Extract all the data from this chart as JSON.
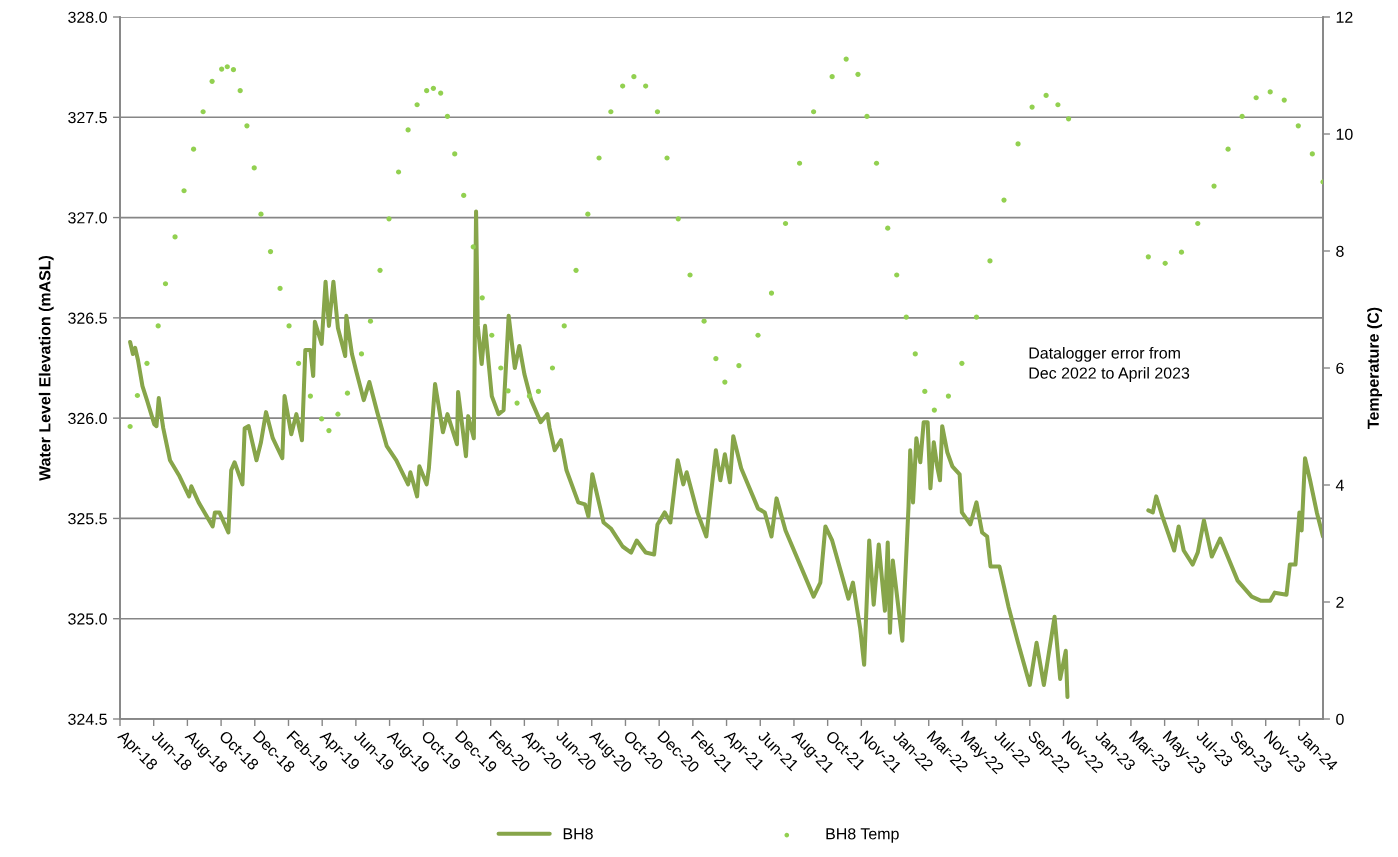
{
  "chart_data": {
    "type": "line",
    "ylabel": "Water Level Elevation (mASL)",
    "y2label": "Temperature (C)",
    "annotations": [
      "Datalogger error from\nDec 2022 to April 2023"
    ],
    "xlim": [
      "2018-04-20",
      "2024-03-01"
    ],
    "xticks": [
      {
        "value": "2018-04-20",
        "label": "Apr-18"
      },
      {
        "value": "2018-06-19",
        "label": "Jun-18"
      },
      {
        "value": "2018-08-18",
        "label": "Aug-18"
      },
      {
        "value": "2018-10-17",
        "label": "Oct-18"
      },
      {
        "value": "2018-12-16",
        "label": "Dec-18"
      },
      {
        "value": "2019-02-14",
        "label": "Feb-19"
      },
      {
        "value": "2019-04-15",
        "label": "Apr-19"
      },
      {
        "value": "2019-06-14",
        "label": "Jun-19"
      },
      {
        "value": "2019-08-13",
        "label": "Aug-19"
      },
      {
        "value": "2019-10-12",
        "label": "Oct-19"
      },
      {
        "value": "2019-12-11",
        "label": "Dec-19"
      },
      {
        "value": "2020-02-09",
        "label": "Feb-20"
      },
      {
        "value": "2020-04-09",
        "label": "Apr-20"
      },
      {
        "value": "2020-06-08",
        "label": "Jun-20"
      },
      {
        "value": "2020-08-07",
        "label": "Aug-20"
      },
      {
        "value": "2020-10-06",
        "label": "Oct-20"
      },
      {
        "value": "2020-12-05",
        "label": "Dec-20"
      },
      {
        "value": "2021-02-03",
        "label": "Feb-21"
      },
      {
        "value": "2021-04-04",
        "label": "Apr-21"
      },
      {
        "value": "2021-06-03",
        "label": "Jun-21"
      },
      {
        "value": "2021-08-02",
        "label": "Aug-21"
      },
      {
        "value": "2021-10-01",
        "label": "Oct-21"
      },
      {
        "value": "2021-11-30",
        "label": "Nov-21"
      },
      {
        "value": "2022-01-29",
        "label": "Jan-22"
      },
      {
        "value": "2022-03-30",
        "label": "Mar-22"
      },
      {
        "value": "2022-05-29",
        "label": "May-22"
      },
      {
        "value": "2022-07-28",
        "label": "Jul-22"
      },
      {
        "value": "2022-09-26",
        "label": "Sep-22"
      },
      {
        "value": "2022-11-25",
        "label": "Nov-22"
      },
      {
        "value": "2023-01-24",
        "label": "Jan-23"
      },
      {
        "value": "2023-03-25",
        "label": "Mar-23"
      },
      {
        "value": "2023-05-24",
        "label": "May-23"
      },
      {
        "value": "2023-07-23",
        "label": "Jul-23"
      },
      {
        "value": "2023-09-21",
        "label": "Sep-23"
      },
      {
        "value": "2023-11-20",
        "label": "Nov-23"
      },
      {
        "value": "2024-01-19",
        "label": "Jan-24"
      }
    ],
    "ylim": [
      324.5,
      328.0
    ],
    "yticks": [
      {
        "value": 324.5,
        "label": "324.5"
      },
      {
        "value": 325.0,
        "label": "325.0"
      },
      {
        "value": 325.5,
        "label": "325.5"
      },
      {
        "value": 326.0,
        "label": "326.0"
      },
      {
        "value": 326.5,
        "label": "326.5"
      },
      {
        "value": 327.0,
        "label": "327.0"
      },
      {
        "value": 327.5,
        "label": "327.5"
      },
      {
        "value": 328.0,
        "label": "328.0"
      }
    ],
    "y2lim": [
      0,
      12
    ],
    "y2ticks": [
      0,
      2,
      4,
      6,
      8,
      10,
      12
    ],
    "grid": "y",
    "legend": "bottom",
    "series": [
      {
        "name": "BH8",
        "color": "#87a54a",
        "line_style": "solid",
        "x": [
          "2018-05-08",
          "2018-05-13",
          "2018-05-17",
          "2018-05-22",
          "2018-05-30",
          "2018-06-07",
          "2018-06-20",
          "2018-06-24",
          "2018-06-28",
          "2018-07-06",
          "2018-07-18",
          "2018-08-04",
          "2018-08-21",
          "2018-08-25",
          "2018-09-07",
          "2018-10-02",
          "2018-10-06",
          "2018-10-14",
          "2018-10-30",
          "2018-11-04",
          "2018-11-10",
          "2018-11-24",
          "2018-11-28",
          "2018-12-05",
          "2018-12-19",
          "2018-12-27",
          "2019-01-05",
          "2019-01-17",
          "2019-02-03",
          "2019-02-07",
          "2019-02-19",
          "2019-02-28",
          "2019-03-10",
          "2019-03-16",
          "2019-03-25",
          "2019-03-30",
          "2019-04-02",
          "2019-04-14",
          "2019-04-21",
          "2019-04-27",
          "2019-05-05",
          "2019-05-13",
          "2019-05-26",
          "2019-05-28",
          "2019-06-07",
          "2019-06-15",
          "2019-06-28",
          "2019-07-08",
          "2019-07-22",
          "2019-08-08",
          "2019-08-25",
          "2019-09-15",
          "2019-09-19",
          "2019-10-01",
          "2019-10-05",
          "2019-10-18",
          "2019-10-22",
          "2019-11-02",
          "2019-11-16",
          "2019-11-24",
          "2019-12-11",
          "2019-12-13",
          "2019-12-27",
          "2019-12-31",
          "2020-01-10",
          "2020-01-14",
          "2020-01-17",
          "2020-01-24",
          "2020-01-30",
          "2020-02-11",
          "2020-02-23",
          "2020-03-03",
          "2020-03-12",
          "2020-03-23",
          "2020-03-31",
          "2020-04-09",
          "2020-04-21",
          "2020-05-08",
          "2020-05-20",
          "2020-05-24",
          "2020-06-02",
          "2020-06-13",
          "2020-06-23",
          "2020-07-14",
          "2020-07-26",
          "2020-08-01",
          "2020-08-08",
          "2020-08-28",
          "2020-09-10",
          "2020-10-01",
          "2020-10-16",
          "2020-10-26",
          "2020-11-11",
          "2020-11-26",
          "2020-12-02",
          "2020-12-15",
          "2020-12-25",
          "2021-01-07",
          "2021-01-17",
          "2021-01-23",
          "2021-02-11",
          "2021-02-27",
          "2021-03-06",
          "2021-03-16",
          "2021-03-24",
          "2021-04-01",
          "2021-04-10",
          "2021-04-16",
          "2021-04-30",
          "2021-05-30",
          "2021-06-11",
          "2021-06-23",
          "2021-07-02",
          "2021-07-18",
          "2021-09-06",
          "2021-09-18",
          "2021-09-27",
          "2021-10-09",
          "2021-10-22",
          "2021-11-07",
          "2021-11-15",
          "2021-11-28",
          "2021-12-05",
          "2021-12-14",
          "2021-12-22",
          "2021-12-31",
          "2022-01-11",
          "2022-01-16",
          "2022-01-20",
          "2022-01-25",
          "2022-02-11",
          "2022-02-22",
          "2022-02-25",
          "2022-03-02",
          "2022-03-08",
          "2022-03-15",
          "2022-03-21",
          "2022-03-28",
          "2022-04-02",
          "2022-04-08",
          "2022-04-14",
          "2022-04-19",
          "2022-04-23",
          "2022-05-02",
          "2022-05-11",
          "2022-05-24",
          "2022-05-28",
          "2022-06-12",
          "2022-06-23",
          "2022-07-03",
          "2022-07-12",
          "2022-07-18",
          "2022-08-03",
          "2022-08-19",
          "2022-09-05",
          "2022-09-26",
          "2022-10-08",
          "2022-10-21",
          "2022-11-09",
          "2022-11-19",
          "2022-11-29",
          "2022-12-02",
          "2023-01-24",
          "2023-04-25",
          "2023-05-03",
          "2023-05-09",
          "2023-05-20",
          "2023-06-10",
          "2023-06-18",
          "2023-06-27",
          "2023-07-13",
          "2023-07-22",
          "2023-08-02",
          "2023-08-16",
          "2023-08-31",
          "2023-10-01",
          "2023-10-26",
          "2023-11-11",
          "2023-11-28",
          "2023-12-06",
          "2023-12-27",
          "2024-01-02",
          "2024-01-12",
          "2024-01-19",
          "2024-01-23",
          "2024-01-29",
          "2024-02-07",
          "2024-02-19",
          "2024-03-01"
        ],
        "values": [
          326.38,
          326.32,
          326.35,
          326.29,
          326.16,
          326.09,
          325.97,
          325.96,
          326.1,
          325.95,
          325.79,
          325.71,
          325.61,
          325.66,
          325.58,
          325.46,
          325.53,
          325.53,
          325.43,
          325.74,
          325.78,
          325.67,
          325.95,
          325.96,
          325.79,
          325.88,
          326.03,
          325.9,
          325.8,
          326.11,
          325.92,
          326.02,
          325.89,
          326.34,
          326.34,
          326.21,
          326.48,
          326.37,
          326.68,
          326.46,
          326.68,
          326.45,
          326.31,
          326.51,
          326.32,
          326.23,
          326.09,
          326.18,
          326.03,
          325.86,
          325.79,
          325.67,
          325.73,
          325.61,
          325.76,
          325.67,
          325.75,
          326.17,
          325.93,
          326.02,
          325.87,
          326.13,
          325.81,
          326.01,
          325.9,
          327.03,
          326.46,
          326.27,
          326.46,
          326.11,
          326.02,
          326.04,
          326.51,
          326.25,
          326.36,
          326.22,
          326.09,
          325.98,
          326.02,
          325.95,
          325.84,
          325.89,
          325.74,
          325.58,
          325.57,
          325.51,
          325.72,
          325.48,
          325.45,
          325.36,
          325.33,
          325.39,
          325.33,
          325.32,
          325.47,
          325.53,
          325.48,
          325.79,
          325.67,
          325.73,
          325.53,
          325.41,
          325.59,
          325.84,
          325.69,
          325.82,
          325.68,
          325.91,
          325.75,
          325.55,
          325.53,
          325.41,
          325.6,
          325.44,
          325.11,
          325.18,
          325.46,
          325.39,
          325.26,
          325.1,
          325.18,
          324.95,
          324.77,
          325.39,
          325.07,
          325.37,
          325.04,
          325.38,
          324.93,
          325.29,
          324.89,
          325.56,
          325.84,
          325.58,
          325.9,
          325.78,
          325.98,
          325.98,
          325.65,
          325.88,
          325.76,
          325.69,
          325.96,
          325.83,
          325.76,
          325.72,
          325.53,
          325.47,
          325.58,
          325.43,
          325.41,
          325.26,
          325.26,
          325.06,
          324.88,
          324.67,
          324.88,
          324.67,
          325.01,
          324.7,
          324.84,
          324.61,
          null,
          325.54,
          325.53,
          325.61,
          325.51,
          325.34,
          325.46,
          325.34,
          325.27,
          325.33,
          325.49,
          325.31,
          325.4,
          325.19,
          325.11,
          325.09,
          325.09,
          325.13,
          325.12,
          325.27,
          325.27,
          325.53,
          325.44,
          325.8,
          325.69,
          325.53,
          325.41
        ]
      },
      {
        "name": "BH8 Temp",
        "type": "scatter",
        "axis": "y2",
        "color": "#92d050",
        "marker": "circle",
        "x": [
          "2018-05-08",
          "2018-05-21",
          "2018-06-07",
          "2018-06-27",
          "2018-07-10",
          "2018-07-27",
          "2018-08-12",
          "2018-08-29",
          "2018-09-15",
          "2018-10-01",
          "2018-10-18",
          "2018-10-28",
          "2018-11-08",
          "2018-11-20",
          "2018-12-02",
          "2018-12-15",
          "2018-12-27",
          "2019-01-13",
          "2019-01-30",
          "2019-02-15",
          "2019-03-04",
          "2019-03-25",
          "2019-04-14",
          "2019-04-27",
          "2019-05-13",
          "2019-05-30",
          "2019-06-24",
          "2019-07-10",
          "2019-07-27",
          "2019-08-12",
          "2019-08-29",
          "2019-09-15",
          "2019-10-01",
          "2019-10-18",
          "2019-10-30",
          "2019-11-12",
          "2019-11-24",
          "2019-12-07",
          "2019-12-23",
          "2020-01-09",
          "2020-01-25",
          "2020-02-11",
          "2020-02-27",
          "2020-03-11",
          "2020-03-27",
          "2020-04-18",
          "2020-05-04",
          "2020-05-29",
          "2020-06-19",
          "2020-07-10",
          "2020-07-31",
          "2020-08-20",
          "2020-09-10",
          "2020-10-01",
          "2020-10-21",
          "2020-11-11",
          "2020-12-02",
          "2020-12-19",
          "2021-01-08",
          "2021-01-29",
          "2021-02-23",
          "2021-03-16",
          "2021-04-01",
          "2021-04-26",
          "2021-05-30",
          "2021-06-23",
          "2021-07-18",
          "2021-08-12",
          "2021-09-06",
          "2021-10-09",
          "2021-11-03",
          "2021-11-24",
          "2021-12-10",
          "2021-12-27",
          "2022-01-16",
          "2022-02-01",
          "2022-02-18",
          "2022-03-06",
          "2022-03-23",
          "2022-04-09",
          "2022-05-04",
          "2022-05-28",
          "2022-06-23",
          "2022-07-17",
          "2022-08-11",
          "2022-09-05",
          "2022-09-30",
          "2022-10-25",
          "2022-11-15",
          "2022-12-04",
          "2023-04-25",
          "2023-05-25",
          "2023-06-23",
          "2023-07-22",
          "2023-08-20",
          "2023-09-14",
          "2023-10-09",
          "2023-11-03",
          "2023-11-28",
          "2023-12-23",
          "2024-01-17",
          "2024-02-11",
          "2024-03-01"
        ],
        "values": [
          5.0,
          5.53,
          6.08,
          6.72,
          7.44,
          8.24,
          9.03,
          9.74,
          10.38,
          10.9,
          11.11,
          11.15,
          11.1,
          10.74,
          10.14,
          9.42,
          8.63,
          7.99,
          7.36,
          6.72,
          6.08,
          5.52,
          5.13,
          4.93,
          5.21,
          5.57,
          6.24,
          6.8,
          7.67,
          8.55,
          9.35,
          10.07,
          10.5,
          10.74,
          10.78,
          10.7,
          10.3,
          9.66,
          8.95,
          8.07,
          7.2,
          6.56,
          6.0,
          5.61,
          5.4,
          5.52,
          5.6,
          6.0,
          6.72,
          7.67,
          8.63,
          9.59,
          10.38,
          10.82,
          10.98,
          10.82,
          10.38,
          9.59,
          8.55,
          7.59,
          6.8,
          6.16,
          5.76,
          6.04,
          6.56,
          7.28,
          8.47,
          9.5,
          10.38,
          10.98,
          11.28,
          11.02,
          10.3,
          9.5,
          8.39,
          7.59,
          6.87,
          6.24,
          5.6,
          5.28,
          5.52,
          6.08,
          6.87,
          7.83,
          8.87,
          9.83,
          10.46,
          10.66,
          10.5,
          10.26,
          7.9,
          7.79,
          7.98,
          8.47,
          9.11,
          9.74,
          10.3,
          10.62,
          10.72,
          10.58,
          10.14,
          9.66,
          9.18
        ]
      }
    ]
  }
}
